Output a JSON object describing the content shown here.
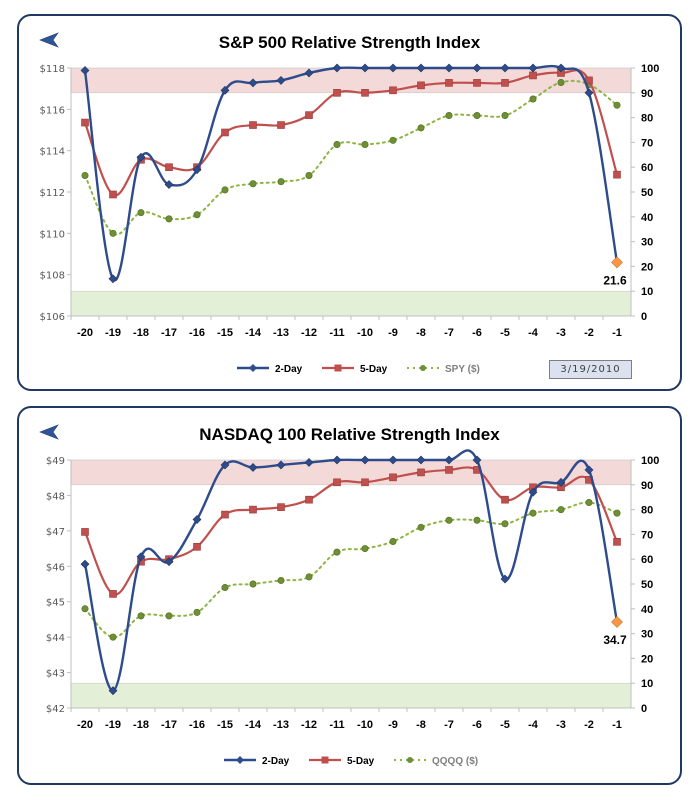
{
  "colors": {
    "two_day": "#2e4b8c",
    "five_day": "#c0504d",
    "price": "#8cb542",
    "overbought_band": "#f3d9d8",
    "oversold_band": "#e4efd8",
    "highlight_marker": "#f79646",
    "frame": "#1f3864"
  },
  "icons": {
    "back": "back-arrow-icon"
  },
  "date_label": "3/19/2010",
  "chart_data": [
    {
      "type": "line",
      "title": "S&P 500 Relative Strength Index",
      "x": [
        -20,
        -19,
        -18,
        -17,
        -16,
        -15,
        -14,
        -13,
        -12,
        -11,
        -10,
        -9,
        -8,
        -7,
        -6,
        -5,
        -4,
        -3,
        -2,
        -1
      ],
      "x_tick_labels": [
        "-20",
        "-19",
        "-18",
        "-17",
        "-16",
        "-15",
        "-14",
        "-13",
        "-12",
        "-11",
        "-10",
        "-9",
        "-8",
        "-7",
        "-6",
        "-5",
        "-4",
        "-3",
        "-2",
        "-1"
      ],
      "left_axis": {
        "range": [
          106,
          118
        ],
        "ticks": [
          106,
          108,
          110,
          112,
          114,
          116,
          118
        ],
        "tick_labels": [
          "$106",
          "$108",
          "$110",
          "$112",
          "$114",
          "$116",
          "$118"
        ]
      },
      "right_axis": {
        "range": [
          0,
          100
        ],
        "ticks": [
          0,
          10,
          20,
          30,
          40,
          50,
          60,
          70,
          80,
          90,
          100
        ],
        "tick_labels": [
          "0",
          "10",
          "20",
          "30",
          "40",
          "50",
          "60",
          "70",
          "80",
          "90",
          "100"
        ]
      },
      "bands": [
        {
          "name": "overbought",
          "from": 90,
          "to": 100
        },
        {
          "name": "oversold",
          "from": 0,
          "to": 10
        }
      ],
      "series": [
        {
          "name": "2-Day",
          "axis": "right",
          "values": [
            99,
            15,
            64,
            53,
            59,
            91,
            94,
            95,
            98,
            100,
            100,
            100,
            100,
            100,
            100,
            100,
            100,
            100,
            90,
            21.6
          ]
        },
        {
          "name": "5-Day",
          "axis": "right",
          "values": [
            78,
            49,
            63,
            60,
            60,
            74,
            77,
            77,
            81,
            90,
            90,
            91,
            93,
            94,
            94,
            94,
            97,
            98,
            95,
            57
          ]
        },
        {
          "name": "SPY ($)",
          "axis": "left",
          "values": [
            112.8,
            110.0,
            111.0,
            110.7,
            110.9,
            112.1,
            112.4,
            112.5,
            112.8,
            114.3,
            114.3,
            114.5,
            115.1,
            115.7,
            115.7,
            115.7,
            116.5,
            117.3,
            117.2,
            116.2
          ]
        }
      ],
      "annotation": {
        "series": "2-Day",
        "x": -1,
        "label": "21.6"
      },
      "legend": [
        "2-Day",
        "5-Day",
        "SPY ($)"
      ],
      "legend_position": "bottom"
    },
    {
      "type": "line",
      "title": "NASDAQ 100 Relative Strength Index",
      "x": [
        -20,
        -19,
        -18,
        -17,
        -16,
        -15,
        -14,
        -13,
        -12,
        -11,
        -10,
        -9,
        -8,
        -7,
        -6,
        -5,
        -4,
        -3,
        -2,
        -1
      ],
      "x_tick_labels": [
        "-20",
        "-19",
        "-18",
        "-17",
        "-16",
        "-15",
        "-14",
        "-13",
        "-12",
        "-11",
        "-10",
        "-9",
        "-8",
        "-7",
        "-6",
        "-5",
        "-4",
        "-3",
        "-2",
        "-1"
      ],
      "left_axis": {
        "range": [
          42,
          49
        ],
        "ticks": [
          42,
          43,
          44,
          45,
          46,
          47,
          48,
          49
        ],
        "tick_labels": [
          "$42",
          "$43",
          "$44",
          "$45",
          "$46",
          "$47",
          "$48",
          "$49"
        ]
      },
      "right_axis": {
        "range": [
          0,
          100
        ],
        "ticks": [
          0,
          10,
          20,
          30,
          40,
          50,
          60,
          70,
          80,
          90,
          100
        ],
        "tick_labels": [
          "0",
          "10",
          "20",
          "30",
          "40",
          "50",
          "60",
          "70",
          "80",
          "90",
          "100"
        ]
      },
      "bands": [
        {
          "name": "overbought",
          "from": 90,
          "to": 100
        },
        {
          "name": "oversold",
          "from": 0,
          "to": 10
        }
      ],
      "series": [
        {
          "name": "2-Day",
          "axis": "right",
          "values": [
            58,
            7,
            61,
            59,
            76,
            98,
            97,
            98,
            99,
            100,
            100,
            100,
            100,
            100,
            100,
            52,
            87,
            91,
            96,
            34.7
          ]
        },
        {
          "name": "5-Day",
          "axis": "right",
          "values": [
            71,
            46,
            59,
            60,
            65,
            78,
            80,
            81,
            84,
            91,
            91,
            93,
            95,
            96,
            96,
            84,
            89,
            89,
            92,
            67
          ]
        },
        {
          "name": "QQQQ ($)",
          "axis": "left",
          "values": [
            44.8,
            44.0,
            44.6,
            44.6,
            44.7,
            45.4,
            45.5,
            45.6,
            45.7,
            46.4,
            46.5,
            46.7,
            47.1,
            47.3,
            47.3,
            47.2,
            47.5,
            47.6,
            47.8,
            47.5
          ]
        }
      ],
      "annotation": {
        "series": "2-Day",
        "x": -1,
        "label": "34.7"
      },
      "legend": [
        "2-Day",
        "5-Day",
        "QQQQ ($)"
      ],
      "legend_position": "bottom"
    }
  ]
}
